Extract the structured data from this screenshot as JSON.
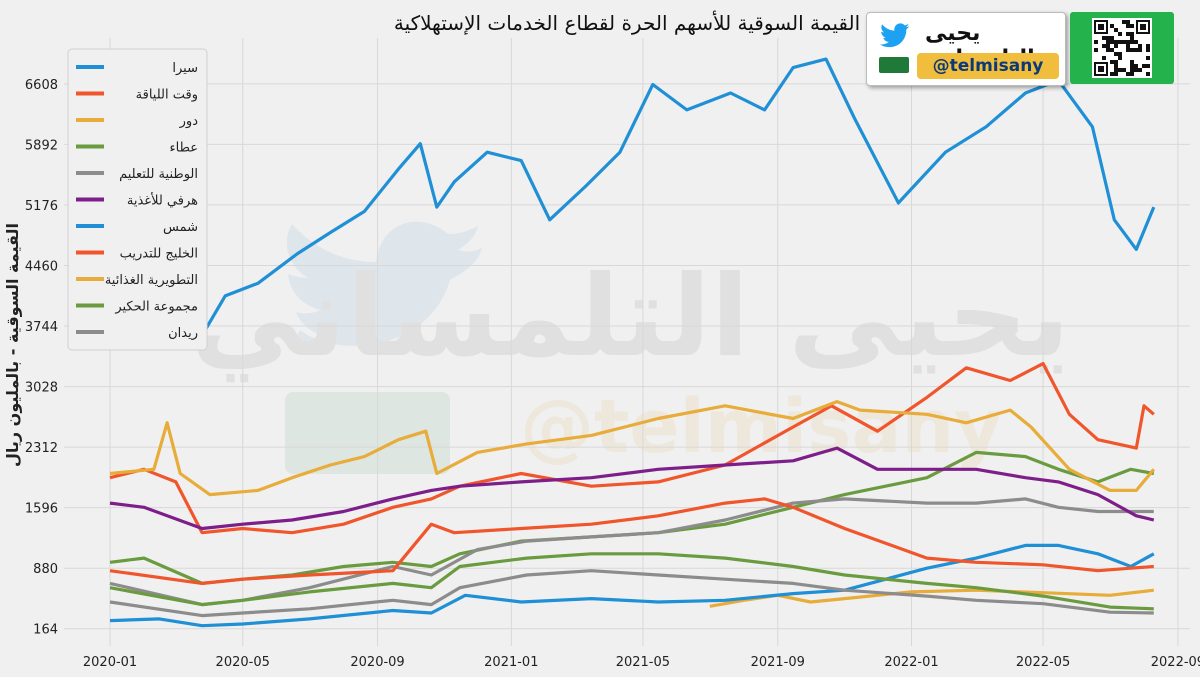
{
  "title": "القيمة السوقية للأسهم الحرة لقطاع الخدمات الإستهلاكية",
  "watermark": {
    "name": "يحيى التلمساني",
    "handle": "@telmisany"
  },
  "badge": {
    "name": "يحيى التلمساني",
    "handle": "@telmisany"
  },
  "chart_data": {
    "type": "line",
    "ylabel": "القيمة السوقية - بالمليون ريال",
    "xlabel": "",
    "xlim": [
      "2019-11-20",
      "2022-09-12"
    ],
    "ylim": [
      -40,
      7150
    ],
    "x_ticks": [
      "2020-01",
      "2020-05",
      "2020-09",
      "2021-01",
      "2021-05",
      "2021-09",
      "2022-01",
      "2022-05",
      "2022-09"
    ],
    "y_ticks": [
      164,
      880,
      1596,
      2312,
      3028,
      3744,
      4460,
      5176,
      5892,
      6608
    ],
    "grid": true,
    "legend_position": "top-left",
    "series": [
      {
        "name": "سيرا",
        "color": "#1f8fd6",
        "points": [
          [
            "2020-01-01",
            6900
          ],
          [
            "2020-01-25",
            6780
          ],
          [
            "2020-02-20",
            7000
          ],
          [
            "2020-03-05",
            6700
          ],
          [
            "2020-03-18",
            5500
          ],
          [
            "2020-03-28",
            3700
          ],
          [
            "2020-04-15",
            4100
          ],
          [
            "2020-05-15",
            4250
          ],
          [
            "2020-06-20",
            4600
          ],
          [
            "2020-07-20",
            4850
          ],
          [
            "2020-08-20",
            5100
          ],
          [
            "2020-09-20",
            5600
          ],
          [
            "2020-10-10",
            5900
          ],
          [
            "2020-10-25",
            5150
          ],
          [
            "2020-11-10",
            5450
          ],
          [
            "2020-12-10",
            5800
          ],
          [
            "2021-01-10",
            5700
          ],
          [
            "2021-02-05",
            5000
          ],
          [
            "2021-03-10",
            5400
          ],
          [
            "2021-04-10",
            5800
          ],
          [
            "2021-05-10",
            6600
          ],
          [
            "2021-06-10",
            6300
          ],
          [
            "2021-07-20",
            6500
          ],
          [
            "2021-08-20",
            6300
          ],
          [
            "2021-09-15",
            6800
          ],
          [
            "2021-10-15",
            6900
          ],
          [
            "2021-11-10",
            6200
          ],
          [
            "2021-12-20",
            5200
          ],
          [
            "2022-02-01",
            5800
          ],
          [
            "2022-03-10",
            6100
          ],
          [
            "2022-04-15",
            6500
          ],
          [
            "2022-05-15",
            6650
          ],
          [
            "2022-06-15",
            6100
          ],
          [
            "2022-07-05",
            5000
          ],
          [
            "2022-07-25",
            4650
          ],
          [
            "2022-08-10",
            5150
          ]
        ]
      },
      {
        "name": "وقت اللياقة",
        "color": "#f0552b",
        "points": [
          [
            "2020-01-01",
            1950
          ],
          [
            "2020-02-01",
            2050
          ],
          [
            "2020-03-01",
            1900
          ],
          [
            "2020-03-25",
            1300
          ],
          [
            "2020-05-01",
            1350
          ],
          [
            "2020-06-15",
            1300
          ],
          [
            "2020-08-01",
            1400
          ],
          [
            "2020-09-15",
            1600
          ],
          [
            "2020-10-20",
            1700
          ],
          [
            "2020-11-15",
            1850
          ],
          [
            "2021-01-10",
            2000
          ],
          [
            "2021-03-15",
            1850
          ],
          [
            "2021-05-15",
            1900
          ],
          [
            "2021-07-15",
            2100
          ],
          [
            "2021-09-15",
            2550
          ],
          [
            "2021-10-20",
            2800
          ],
          [
            "2021-12-01",
            2500
          ],
          [
            "2022-01-15",
            2900
          ],
          [
            "2022-02-20",
            3250
          ],
          [
            "2022-04-01",
            3100
          ],
          [
            "2022-05-01",
            3300
          ],
          [
            "2022-05-25",
            2700
          ],
          [
            "2022-06-20",
            2400
          ],
          [
            "2022-07-25",
            2300
          ],
          [
            "2022-08-01",
            2800
          ],
          [
            "2022-08-10",
            2700
          ]
        ]
      },
      {
        "name": "دور",
        "color": "#e7ac3a",
        "points": [
          [
            "2021-07-01",
            430
          ],
          [
            "2021-08-01",
            500
          ],
          [
            "2021-09-01",
            560
          ],
          [
            "2021-10-01",
            480
          ],
          [
            "2021-11-01",
            520
          ],
          [
            "2021-12-01",
            560
          ],
          [
            "2022-01-01",
            600
          ],
          [
            "2022-03-01",
            620
          ],
          [
            "2022-05-01",
            590
          ],
          [
            "2022-07-01",
            560
          ],
          [
            "2022-08-10",
            620
          ]
        ]
      },
      {
        "name": "عطاء",
        "color": "#6a9b3f",
        "points": [
          [
            "2020-01-01",
            950
          ],
          [
            "2020-02-01",
            1000
          ],
          [
            "2020-03-25",
            700
          ],
          [
            "2020-05-01",
            750
          ],
          [
            "2020-06-15",
            800
          ],
          [
            "2020-08-01",
            900
          ],
          [
            "2020-09-15",
            950
          ],
          [
            "2020-10-20",
            900
          ],
          [
            "2020-11-15",
            1050
          ],
          [
            "2021-01-10",
            1200
          ],
          [
            "2021-03-15",
            1250
          ],
          [
            "2021-05-15",
            1300
          ],
          [
            "2021-07-15",
            1400
          ],
          [
            "2021-09-15",
            1600
          ],
          [
            "2021-11-01",
            1750
          ],
          [
            "2022-01-15",
            1950
          ],
          [
            "2022-03-01",
            2250
          ],
          [
            "2022-04-15",
            2200
          ],
          [
            "2022-05-15",
            2050
          ],
          [
            "2022-06-20",
            1900
          ],
          [
            "2022-07-20",
            2050
          ],
          [
            "2022-08-10",
            2000
          ]
        ]
      },
      {
        "name": "الوطنية للتعليم",
        "color": "#8c8c8c",
        "points": [
          [
            "2020-01-01",
            700
          ],
          [
            "2020-03-25",
            450
          ],
          [
            "2020-05-01",
            500
          ],
          [
            "2020-07-01",
            650
          ],
          [
            "2020-09-15",
            900
          ],
          [
            "2020-10-20",
            800
          ],
          [
            "2020-12-01",
            1100
          ],
          [
            "2021-01-15",
            1200
          ],
          [
            "2021-03-15",
            1250
          ],
          [
            "2021-05-15",
            1300
          ],
          [
            "2021-07-15",
            1450
          ],
          [
            "2021-09-15",
            1650
          ],
          [
            "2021-11-01",
            1700
          ],
          [
            "2022-01-15",
            1650
          ],
          [
            "2022-03-01",
            1650
          ],
          [
            "2022-04-15",
            1700
          ],
          [
            "2022-05-15",
            1600
          ],
          [
            "2022-06-20",
            1550
          ],
          [
            "2022-08-10",
            1550
          ]
        ]
      },
      {
        "name": "هرفي للأغذية",
        "color": "#7d1e8a",
        "points": [
          [
            "2020-01-01",
            1650
          ],
          [
            "2020-02-01",
            1600
          ],
          [
            "2020-03-25",
            1350
          ],
          [
            "2020-05-01",
            1400
          ],
          [
            "2020-06-15",
            1450
          ],
          [
            "2020-08-01",
            1550
          ],
          [
            "2020-09-15",
            1700
          ],
          [
            "2020-10-20",
            1800
          ],
          [
            "2020-11-15",
            1850
          ],
          [
            "2021-01-10",
            1900
          ],
          [
            "2021-03-15",
            1950
          ],
          [
            "2021-05-15",
            2050
          ],
          [
            "2021-07-15",
            2100
          ],
          [
            "2021-09-15",
            2150
          ],
          [
            "2021-10-25",
            2300
          ],
          [
            "2021-12-01",
            2050
          ],
          [
            "2022-01-15",
            2050
          ],
          [
            "2022-03-01",
            2050
          ],
          [
            "2022-04-15",
            1950
          ],
          [
            "2022-05-15",
            1900
          ],
          [
            "2022-06-20",
            1750
          ],
          [
            "2022-07-25",
            1500
          ],
          [
            "2022-08-10",
            1450
          ]
        ]
      },
      {
        "name": "شمس",
        "color": "#1f8fd6",
        "points": [
          [
            "2020-01-01",
            260
          ],
          [
            "2020-02-15",
            280
          ],
          [
            "2020-03-25",
            200
          ],
          [
            "2020-05-01",
            220
          ],
          [
            "2020-07-01",
            280
          ],
          [
            "2020-09-15",
            380
          ],
          [
            "2020-10-20",
            350
          ],
          [
            "2020-11-20",
            560
          ],
          [
            "2021-01-10",
            480
          ],
          [
            "2021-03-15",
            520
          ],
          [
            "2021-05-15",
            480
          ],
          [
            "2021-07-15",
            500
          ],
          [
            "2021-09-15",
            580
          ],
          [
            "2021-11-01",
            620
          ],
          [
            "2022-01-15",
            880
          ],
          [
            "2022-03-01",
            1000
          ],
          [
            "2022-04-15",
            1150
          ],
          [
            "2022-05-15",
            1150
          ],
          [
            "2022-06-20",
            1050
          ],
          [
            "2022-07-20",
            900
          ],
          [
            "2022-08-10",
            1050
          ]
        ]
      },
      {
        "name": "الخليج للتدريب",
        "color": "#f0552b",
        "points": [
          [
            "2020-01-01",
            850
          ],
          [
            "2020-03-25",
            700
          ],
          [
            "2020-05-01",
            750
          ],
          [
            "2020-07-01",
            800
          ],
          [
            "2020-09-15",
            850
          ],
          [
            "2020-10-20",
            1400
          ],
          [
            "2020-11-10",
            1300
          ],
          [
            "2021-01-10",
            1350
          ],
          [
            "2021-03-15",
            1400
          ],
          [
            "2021-05-15",
            1500
          ],
          [
            "2021-07-15",
            1650
          ],
          [
            "2021-08-20",
            1700
          ],
          [
            "2021-09-15",
            1600
          ],
          [
            "2021-11-01",
            1350
          ],
          [
            "2022-01-15",
            1000
          ],
          [
            "2022-03-01",
            950
          ],
          [
            "2022-05-01",
            920
          ],
          [
            "2022-06-20",
            850
          ],
          [
            "2022-07-20",
            880
          ],
          [
            "2022-08-10",
            900
          ]
        ]
      },
      {
        "name": "التطويرية الغذائية",
        "color": "#e7ac3a",
        "points": [
          [
            "2020-01-01",
            2000
          ],
          [
            "2020-02-10",
            2050
          ],
          [
            "2020-02-22",
            2600
          ],
          [
            "2020-03-05",
            2000
          ],
          [
            "2020-04-01",
            1750
          ],
          [
            "2020-05-15",
            1800
          ],
          [
            "2020-06-15",
            1950
          ],
          [
            "2020-07-20",
            2100
          ],
          [
            "2020-08-20",
            2200
          ],
          [
            "2020-09-20",
            2400
          ],
          [
            "2020-10-15",
            2500
          ],
          [
            "2020-10-25",
            2000
          ],
          [
            "2020-12-01",
            2250
          ],
          [
            "2021-01-15",
            2350
          ],
          [
            "2021-03-15",
            2450
          ],
          [
            "2021-05-15",
            2650
          ],
          [
            "2021-07-15",
            2800
          ],
          [
            "2021-09-15",
            2650
          ],
          [
            "2021-10-25",
            2850
          ],
          [
            "2021-11-15",
            2750
          ],
          [
            "2022-01-15",
            2700
          ],
          [
            "2022-02-20",
            2600
          ],
          [
            "2022-04-01",
            2750
          ],
          [
            "2022-04-20",
            2550
          ],
          [
            "2022-05-25",
            2050
          ],
          [
            "2022-07-01",
            1800
          ],
          [
            "2022-07-25",
            1800
          ],
          [
            "2022-08-10",
            2050
          ]
        ]
      },
      {
        "name": "مجموعة الحكير",
        "color": "#6a9b3f",
        "points": [
          [
            "2020-01-01",
            650
          ],
          [
            "2020-03-25",
            450
          ],
          [
            "2020-05-01",
            500
          ],
          [
            "2020-07-01",
            600
          ],
          [
            "2020-09-15",
            700
          ],
          [
            "2020-10-20",
            650
          ],
          [
            "2020-11-15",
            900
          ],
          [
            "2021-01-15",
            1000
          ],
          [
            "2021-03-15",
            1050
          ],
          [
            "2021-05-15",
            1050
          ],
          [
            "2021-07-15",
            1000
          ],
          [
            "2021-09-15",
            900
          ],
          [
            "2021-11-01",
            800
          ],
          [
            "2022-01-15",
            700
          ],
          [
            "2022-03-01",
            650
          ],
          [
            "2022-05-01",
            550
          ],
          [
            "2022-07-01",
            420
          ],
          [
            "2022-08-10",
            400
          ]
        ]
      },
      {
        "name": "ريدان",
        "color": "#8c8c8c",
        "points": [
          [
            "2020-01-01",
            480
          ],
          [
            "2020-03-25",
            320
          ],
          [
            "2020-05-01",
            350
          ],
          [
            "2020-07-01",
            400
          ],
          [
            "2020-09-15",
            500
          ],
          [
            "2020-10-20",
            450
          ],
          [
            "2020-11-15",
            650
          ],
          [
            "2021-01-15",
            800
          ],
          [
            "2021-03-15",
            850
          ],
          [
            "2021-05-15",
            800
          ],
          [
            "2021-07-15",
            750
          ],
          [
            "2021-09-15",
            700
          ],
          [
            "2021-11-01",
            620
          ],
          [
            "2022-01-15",
            550
          ],
          [
            "2022-03-01",
            500
          ],
          [
            "2022-05-01",
            460
          ],
          [
            "2022-07-01",
            360
          ],
          [
            "2022-08-10",
            350
          ]
        ]
      }
    ]
  }
}
